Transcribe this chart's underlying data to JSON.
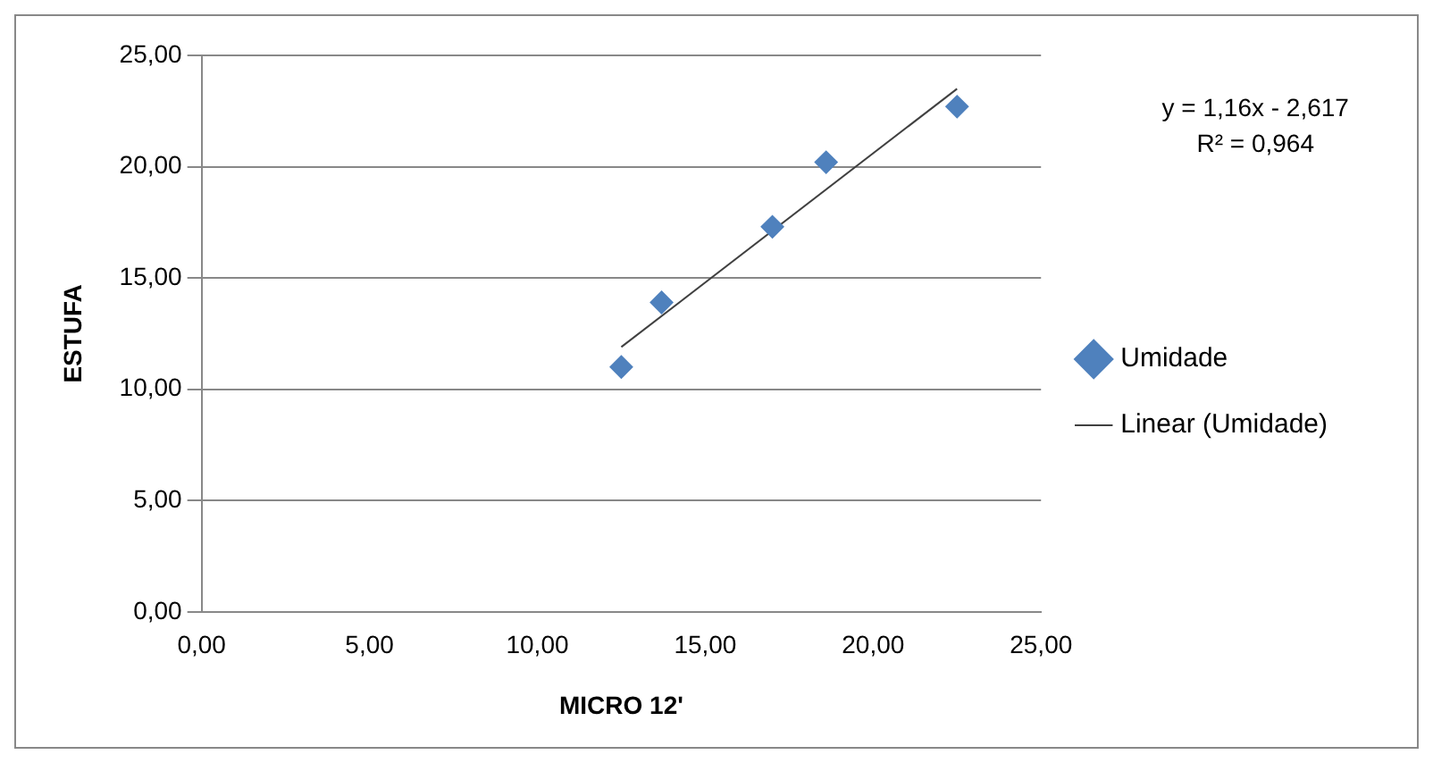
{
  "chart_data": {
    "type": "scatter",
    "xlabel": "MICRO 12'",
    "ylabel": "ESTUFA",
    "xlim": [
      0,
      25
    ],
    "xticks": [
      {
        "value": 0,
        "label": "0,00"
      },
      {
        "value": 5,
        "label": "5,00"
      },
      {
        "value": 10,
        "label": "10,00"
      },
      {
        "value": 15,
        "label": "15,00"
      },
      {
        "value": 20,
        "label": "20,00"
      },
      {
        "value": 25,
        "label": "25,00"
      }
    ],
    "ylim": [
      0,
      25
    ],
    "yticks": [
      {
        "value": 0,
        "label": "0,00"
      },
      {
        "value": 5,
        "label": "5,00"
      },
      {
        "value": 10,
        "label": "10,00"
      },
      {
        "value": 15,
        "label": "15,00"
      },
      {
        "value": 20,
        "label": "20,00"
      },
      {
        "value": 25,
        "label": "25,00"
      }
    ],
    "grid": "y",
    "legend": "right",
    "marker": "diamond",
    "annotations": [
      "y = 1,16x - 2,617",
      "R² = 0,964"
    ],
    "series": [
      {
        "name": "Umidade",
        "color": "#4f81bd",
        "x": [
          12.5,
          13.7,
          17.0,
          18.6,
          22.5
        ],
        "values": [
          11.0,
          13.9,
          17.3,
          20.2,
          22.7
        ]
      },
      {
        "name": "Linear (Umidade)",
        "type": "line",
        "color": "#404040",
        "line_style": "solid",
        "marker": "none",
        "x": [
          12.5,
          22.5
        ],
        "values": [
          11.9,
          23.5
        ]
      }
    ]
  }
}
